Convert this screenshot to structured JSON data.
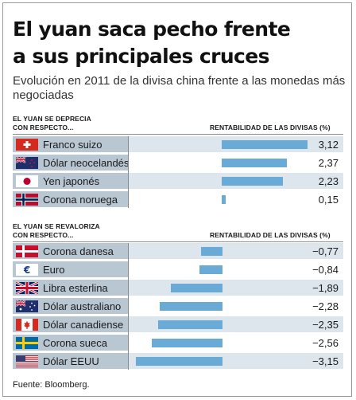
{
  "header": {
    "title_line1": "El yuan saca pecho frente",
    "title_line2": "a sus principales cruces",
    "subtitle": "Evolución en 2011 de la divisa china frente a las monedas más negociadas"
  },
  "sections": [
    {
      "label_line1": "EL YUAN SE DEPRECIA",
      "label_line2": "CON RESPECTO...",
      "column_header": "RENTABILIDAD DE LAS DIVISAS (%)"
    },
    {
      "label_line1": "EL YUAN SE REVALORIZA",
      "label_line2": "CON RESPECTO...",
      "column_header": "RENTABILIDAD DE LAS DIVISAS (%)"
    }
  ],
  "source": "Fuente: Bloomberg.",
  "colors": {
    "bar": "#6aaad7",
    "label_band": "#b9c7d3",
    "row_shade": "#dde6ec"
  },
  "chart_data": {
    "type": "bar",
    "orientation": "horizontal",
    "title": "El yuan saca pecho frente a sus principales cruces",
    "subtitle": "Evolución en 2011 de la divisa china frente a las monedas más negociadas",
    "xlabel": "RENTABILIDAD DE LAS DIVISAS (%)",
    "ylabel": "",
    "xlim": [
      -3.15,
      3.12
    ],
    "grid": false,
    "legend": "none",
    "groups": [
      {
        "name": "EL YUAN SE DEPRECIA CON RESPECTO...",
        "categories": [
          "Franco suizo",
          "Dólar neocelandés",
          "Yen japonés",
          "Corona noruega"
        ],
        "flags": [
          "swiss-flag-icon",
          "new-zealand-flag-icon",
          "japan-flag-icon",
          "norway-flag-icon"
        ],
        "values": [
          3.12,
          2.37,
          2.23,
          0.15
        ],
        "value_labels": [
          "3,12",
          "2,37",
          "2,23",
          "0,15"
        ]
      },
      {
        "name": "EL YUAN SE REVALORIZA CON RESPECTO...",
        "categories": [
          "Corona danesa",
          "Euro",
          "Libra esterlina",
          "Dólar australiano",
          "Dólar canadiense",
          "Corona sueca",
          "Dólar EEUU"
        ],
        "flags": [
          "denmark-flag-icon",
          "euro-icon",
          "uk-flag-icon",
          "australia-flag-icon",
          "canada-flag-icon",
          "sweden-flag-icon",
          "usa-flag-icon"
        ],
        "values": [
          -0.77,
          -0.84,
          -1.89,
          -2.28,
          -2.35,
          -2.56,
          -3.15
        ],
        "value_labels": [
          "−0,77",
          "−0,84",
          "−1,89",
          "−2,28",
          "−2,35",
          "−2,56",
          "−3,15"
        ]
      }
    ]
  }
}
